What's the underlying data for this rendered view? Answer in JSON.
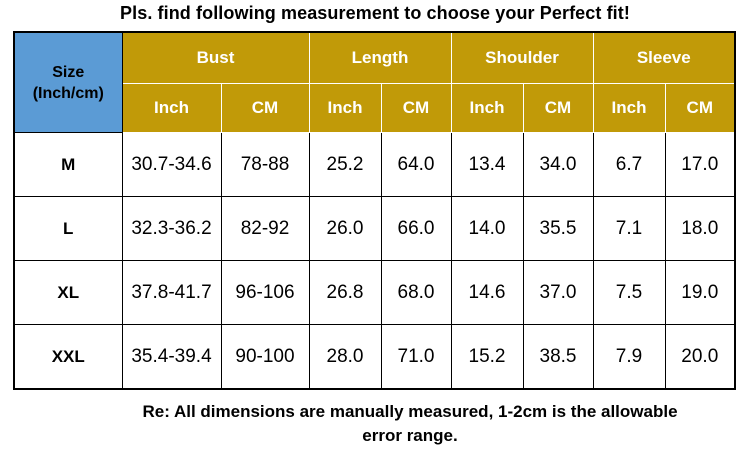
{
  "title": "Pls. find following measurement to choose your Perfect fit!",
  "header": {
    "size_label": "Size",
    "size_unit": "(Inch/cm)",
    "groups": [
      "Bust",
      "Length",
      "Shoulder",
      "Sleeve"
    ],
    "units": [
      "Inch",
      "CM",
      "Inch",
      "CM",
      "Inch",
      "CM",
      "Inch",
      "CM"
    ]
  },
  "rows": [
    {
      "size": "M",
      "values": [
        "30.7-34.6",
        "78-88",
        "25.2",
        "64.0",
        "13.4",
        "34.0",
        "6.7",
        "17.0"
      ]
    },
    {
      "size": "L",
      "values": [
        "32.3-36.2",
        "82-92",
        "26.0",
        "66.0",
        "14.0",
        "35.5",
        "7.1",
        "18.0"
      ]
    },
    {
      "size": "XL",
      "values": [
        "37.8-41.7",
        "96-106",
        "26.8",
        "68.0",
        "14.6",
        "37.0",
        "7.5",
        "19.0"
      ]
    },
    {
      "size": "XXL",
      "values": [
        "35.4-39.4",
        "90-100",
        "28.0",
        "71.0",
        "15.2",
        "38.5",
        "7.9",
        "20.0"
      ]
    }
  ],
  "note": {
    "line1": "Re: All dimensions are manually measured, 1-2cm is the allowable",
    "line2": "error range."
  },
  "colors": {
    "header_gold": "#c19a08",
    "size_header_blue": "#5b9bd5"
  }
}
